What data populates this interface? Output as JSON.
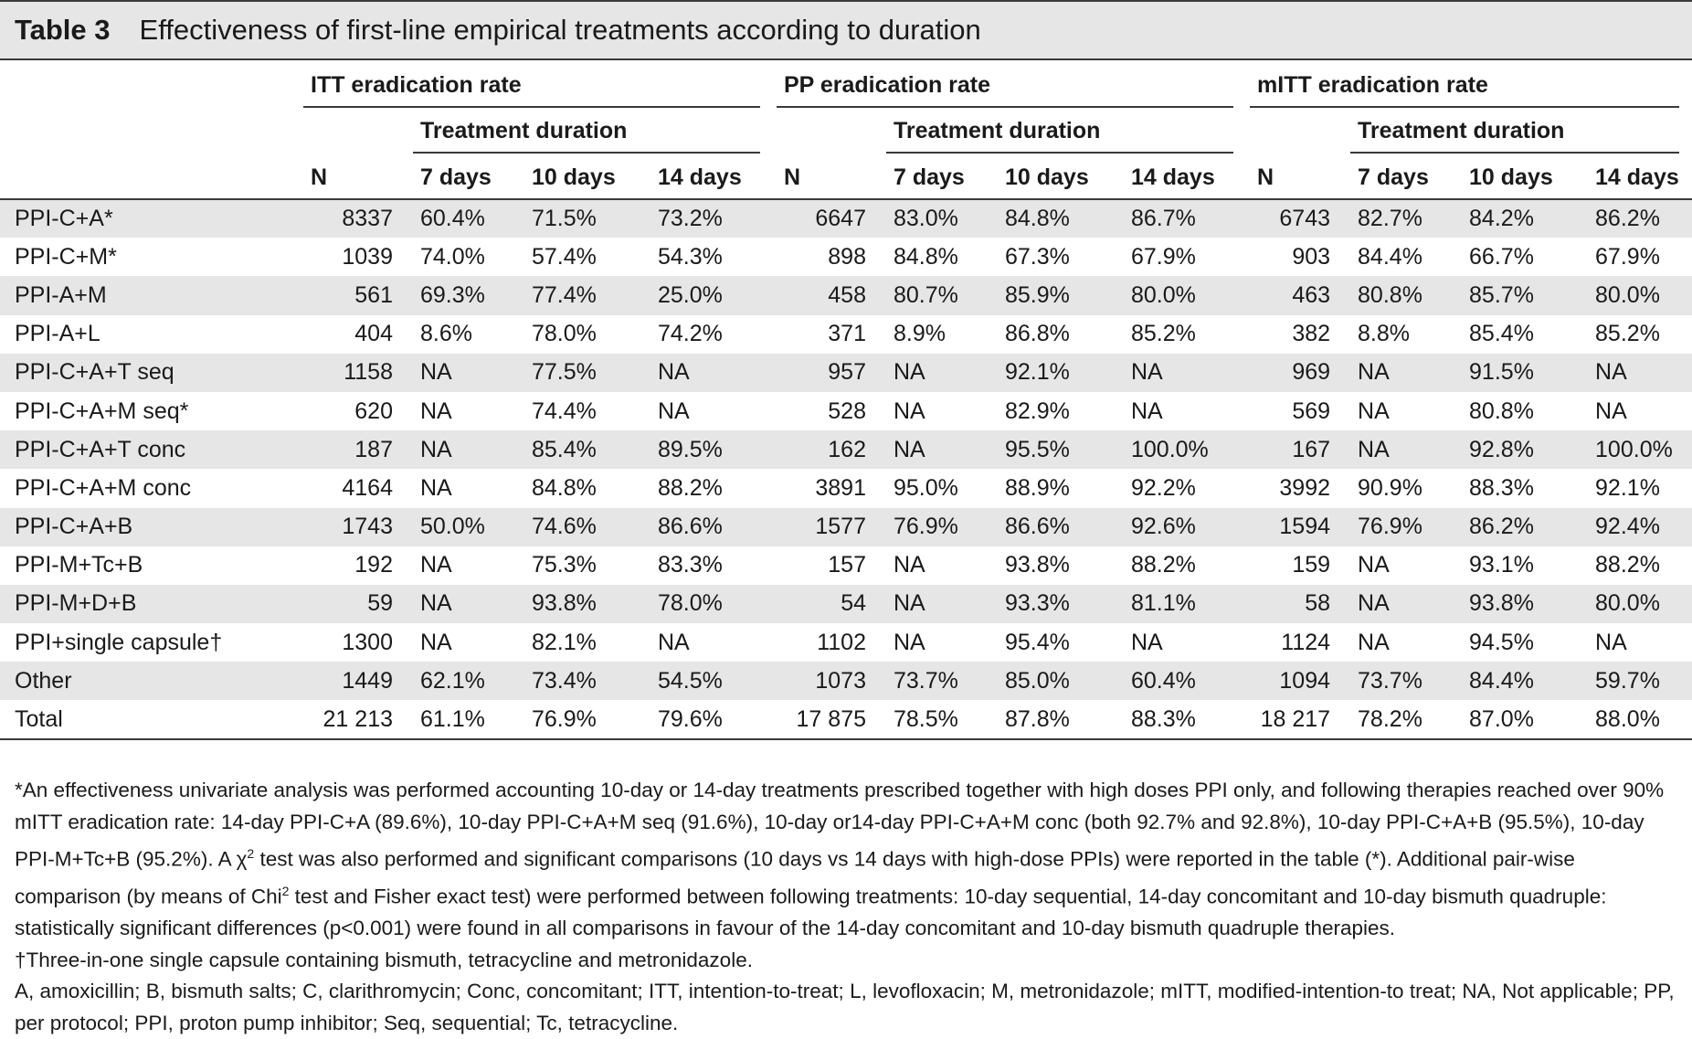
{
  "title": {
    "label": "Table 3",
    "text": "Effectiveness of first-line empirical treatments according to duration"
  },
  "groups": [
    {
      "label": "ITT eradication rate",
      "subheader": "Treatment duration"
    },
    {
      "label": "PP eradication rate",
      "subheader": "Treatment duration"
    },
    {
      "label": "mITT eradication rate",
      "subheader": "Treatment duration"
    }
  ],
  "columns": [
    "N",
    "7 days",
    "10 days",
    "14 days"
  ],
  "rows": [
    {
      "label": "PPI-C+A*",
      "cells": [
        "8337",
        "60.4%",
        "71.5%",
        "73.2%",
        "6647",
        "83.0%",
        "84.8%",
        "86.7%",
        "6743",
        "82.7%",
        "84.2%",
        "86.2%"
      ]
    },
    {
      "label": "PPI-C+M*",
      "cells": [
        "1039",
        "74.0%",
        "57.4%",
        "54.3%",
        "898",
        "84.8%",
        "67.3%",
        "67.9%",
        "903",
        "84.4%",
        "66.7%",
        "67.9%"
      ]
    },
    {
      "label": "PPI-A+M",
      "cells": [
        "561",
        "69.3%",
        "77.4%",
        "25.0%",
        "458",
        "80.7%",
        "85.9%",
        "80.0%",
        "463",
        "80.8%",
        "85.7%",
        "80.0%"
      ]
    },
    {
      "label": "PPI-A+L",
      "cells": [
        "404",
        "8.6%",
        "78.0%",
        "74.2%",
        "371",
        "8.9%",
        "86.8%",
        "85.2%",
        "382",
        "8.8%",
        "85.4%",
        "85.2%"
      ]
    },
    {
      "label": "PPI-C+A+T seq",
      "cells": [
        "1158",
        "NA",
        "77.5%",
        "NA",
        "957",
        "NA",
        "92.1%",
        "NA",
        "969",
        "NA",
        "91.5%",
        "NA"
      ]
    },
    {
      "label": "PPI-C+A+M seq*",
      "cells": [
        "620",
        "NA",
        "74.4%",
        "NA",
        "528",
        "NA",
        "82.9%",
        "NA",
        "569",
        "NA",
        "80.8%",
        "NA"
      ]
    },
    {
      "label": "PPI-C+A+T conc",
      "cells": [
        "187",
        "NA",
        "85.4%",
        "89.5%",
        "162",
        "NA",
        "95.5%",
        "100.0%",
        "167",
        "NA",
        "92.8%",
        "100.0%"
      ]
    },
    {
      "label": "PPI-C+A+M conc",
      "cells": [
        "4164",
        "NA",
        "84.8%",
        "88.2%",
        "3891",
        "95.0%",
        "88.9%",
        "92.2%",
        "3992",
        "90.9%",
        "88.3%",
        "92.1%"
      ]
    },
    {
      "label": "PPI-C+A+B",
      "cells": [
        "1743",
        "50.0%",
        "74.6%",
        "86.6%",
        "1577",
        "76.9%",
        "86.6%",
        "92.6%",
        "1594",
        "76.9%",
        "86.2%",
        "92.4%"
      ]
    },
    {
      "label": "PPI-M+Tc+B",
      "cells": [
        "192",
        "NA",
        "75.3%",
        "83.3%",
        "157",
        "NA",
        "93.8%",
        "88.2%",
        "159",
        "NA",
        "93.1%",
        "88.2%"
      ]
    },
    {
      "label": "PPI-M+D+B",
      "cells": [
        "59",
        "NA",
        "93.8%",
        "78.0%",
        "54",
        "NA",
        "93.3%",
        "81.1%",
        "58",
        "NA",
        "93.8%",
        "80.0%"
      ]
    },
    {
      "label": "PPI+single capsule†",
      "cells": [
        "1300",
        "NA",
        "82.1%",
        "NA",
        "1102",
        "NA",
        "95.4%",
        "NA",
        "1124",
        "NA",
        "94.5%",
        "NA"
      ]
    },
    {
      "label": "Other",
      "cells": [
        "1449",
        "62.1%",
        "73.4%",
        "54.5%",
        "1073",
        "73.7%",
        "85.0%",
        "60.4%",
        "1094",
        "73.7%",
        "84.4%",
        "59.7%"
      ]
    },
    {
      "label": "Total",
      "cells": [
        "21 213",
        "61.1%",
        "76.9%",
        "79.6%",
        "17 875",
        "78.5%",
        "87.8%",
        "88.3%",
        "18 217",
        "78.2%",
        "87.0%",
        "88.0%"
      ]
    }
  ],
  "footnotes": {
    "analysis_a": "*An effectiveness univariate analysis was performed accounting 10-day or 14-day treatments prescribed together with high doses PPI only, and following therapies reached over 90% mITT eradication rate: 14-day PPI-C+A (89.6%), 10-day PPI-C+A+M seq (91.6%), 10-day or14-day PPI-C+A+M conc (both 92.7% and 92.8%), 10-day PPI-C+A+B (95.5%), 10-day PPI-M+Tc+B (95.2%). A ",
    "chi_symbol": "χ",
    "analysis_b": " test was also performed and significant comparisons (10 days vs 14 days with high-dose PPIs) were reported in the table (*). Additional pair-wise comparison (by means of Chi",
    "superscript": "2",
    "analysis_c": " test and Fisher exact test) were performed between following treatments: 10-day sequential, 14-day concomitant and 10-day bismuth quadruple: statistically significant differences (p<0.001) were found in all comparisons in favour of the 14-day concomitant and 10-day bismuth quadruple therapies.",
    "dagger": "†Three-in-one single capsule containing bismuth, tetracycline and metronidazole.",
    "abbreviations": "A, amoxicillin; B, bismuth salts; C, clarithromycin; Conc, concomitant; ITT, intention-to-treat; L, levofloxacin; M, metronidazole; mITT, modified-intention-to treat; NA, Not applicable; PP, per protocol; PPI, proton pump inhibitor; Seq, sequential; Tc, tetracycline."
  }
}
